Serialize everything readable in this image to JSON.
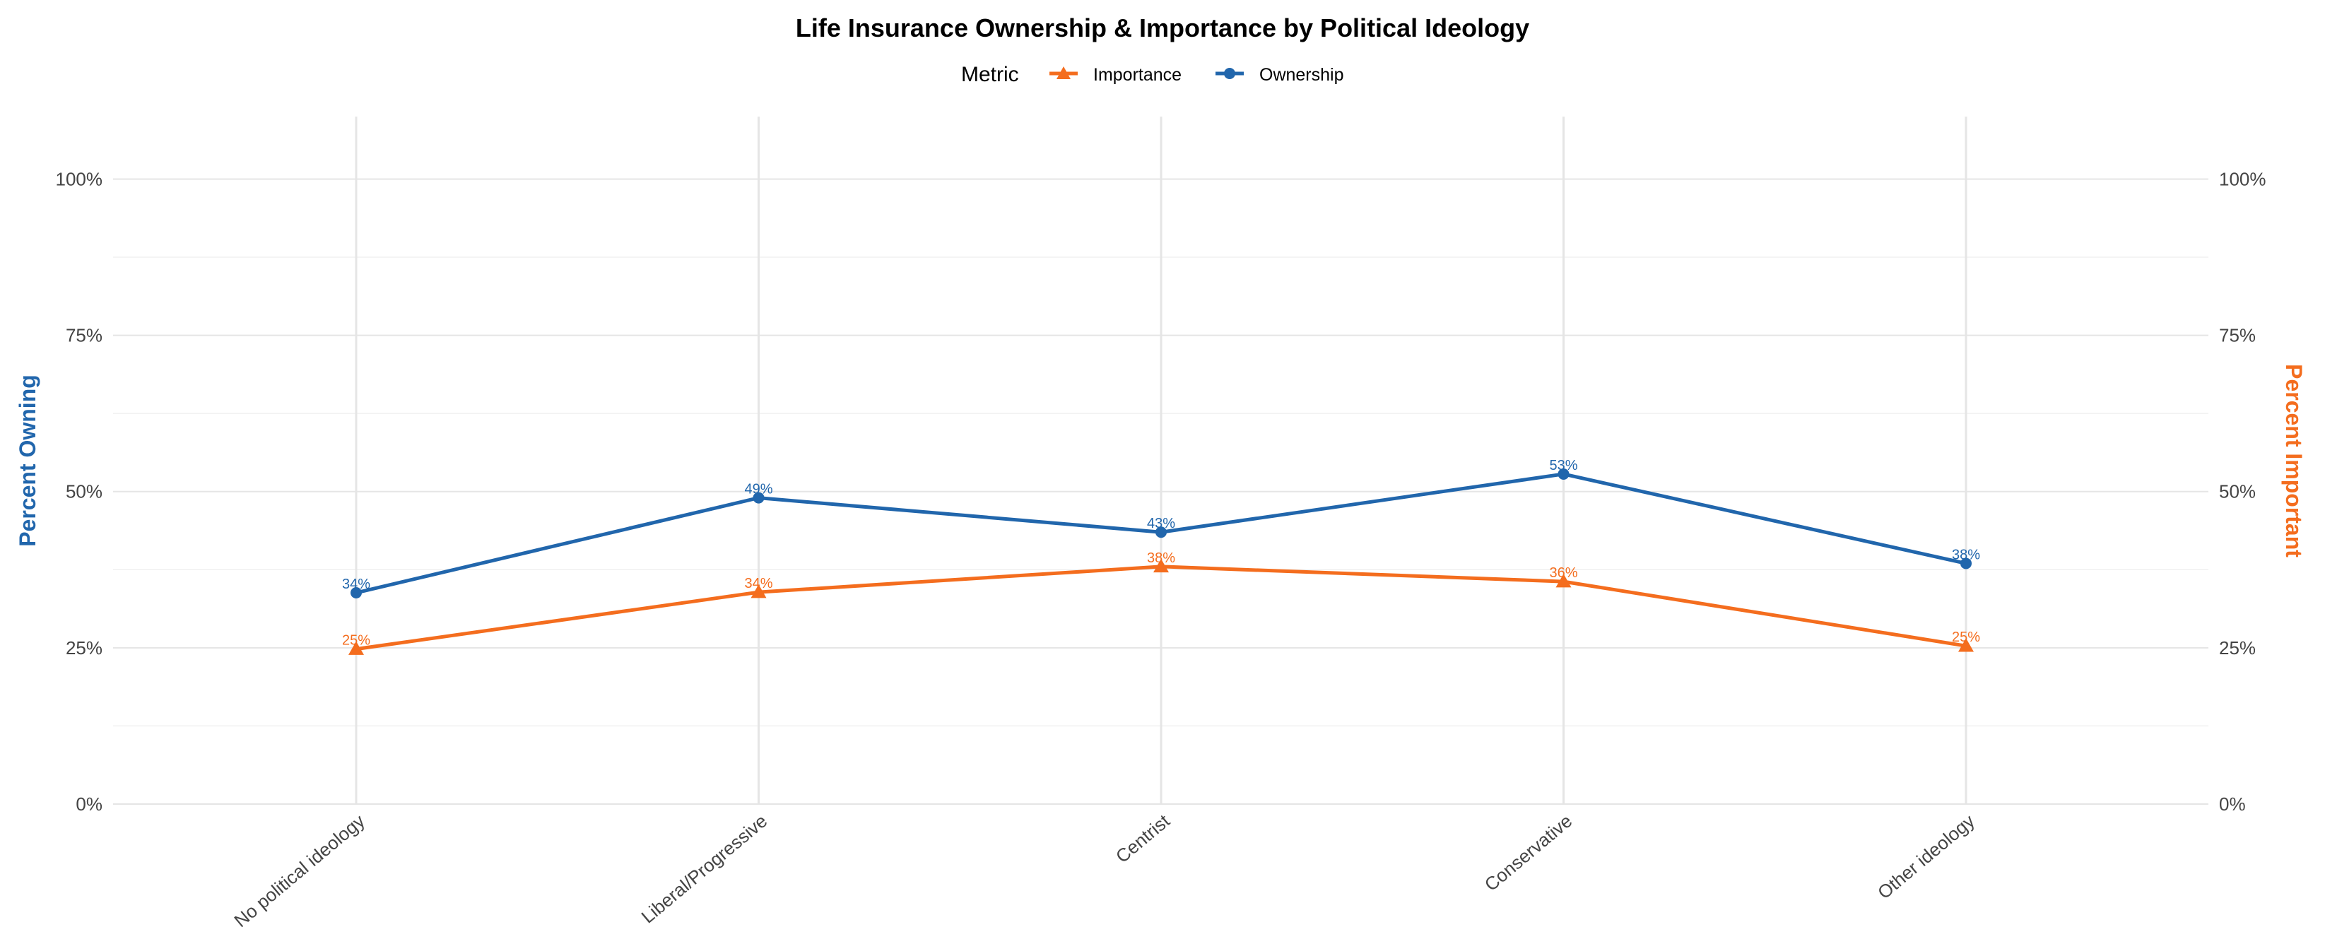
{
  "chart_data": {
    "type": "line",
    "title": "Life Insurance Ownership & Importance by Political Ideology",
    "legend": {
      "title": "Metric",
      "position": "top",
      "entries": [
        "Importance",
        "Ownership"
      ]
    },
    "categories": [
      "No political ideology",
      "Liberal/Progressive",
      "Centrist",
      "Conservative",
      "Other ideology"
    ],
    "ylabel_left": "Percent Owning",
    "ylabel_right": "Percent Important",
    "ylim": [
      0,
      1.1
    ],
    "yticks": [
      0,
      0.25,
      0.5,
      0.75,
      1.0
    ],
    "ytick_labels": [
      "0%",
      "25%",
      "50%",
      "75%",
      "100%"
    ],
    "grid": true,
    "series": [
      {
        "name": "Ownership",
        "color": "#2166ac",
        "marker": "circle",
        "values": [
          0.338,
          0.49,
          0.435,
          0.528,
          0.385
        ],
        "labels": [
          "34%",
          "49%",
          "43%",
          "53%",
          "38%"
        ]
      },
      {
        "name": "Importance",
        "color": "#f46d1e",
        "marker": "triangle",
        "values": [
          0.248,
          0.339,
          0.38,
          0.356,
          0.253
        ],
        "labels": [
          "25%",
          "34%",
          "38%",
          "36%",
          "25%"
        ]
      }
    ]
  }
}
